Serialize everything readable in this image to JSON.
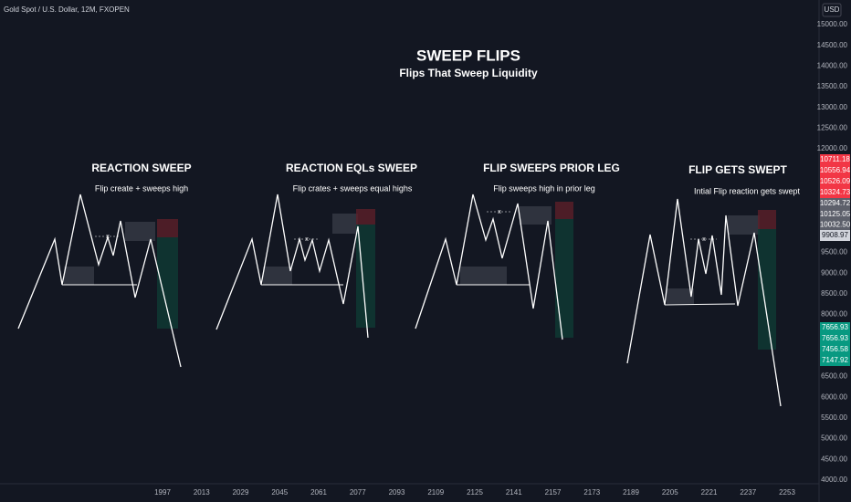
{
  "header": {
    "symbol": "Gold Spot / U.S. Dollar, 12M, FXOPEN",
    "currency": "USD"
  },
  "title": "SWEEP FLIPS",
  "subtitle": "Flips That Sweep Liquidity",
  "marker": "x",
  "panels": [
    {
      "title": "REACTION SWEEP",
      "subtitle": "Flip create + sweeps high"
    },
    {
      "title": "REACTION EQLs SWEEP",
      "subtitle": "Flip crates + sweeps equal highs"
    },
    {
      "title": "FLIP SWEEPS PRIOR LEG",
      "subtitle": "Flip sweeps high in prior leg"
    },
    {
      "title": "FLIP GETS SWEPT",
      "subtitle": "Intial Flip reaction gets swept"
    }
  ],
  "price_axis": {
    "ticks": [
      "15000.00",
      "14500.00",
      "14000.00",
      "13500.00",
      "13000.00",
      "12500.00",
      "12000.00",
      "9500.00",
      "9000.00",
      "8500.00",
      "8000.00",
      "6500.00",
      "6000.00",
      "5500.00",
      "5000.00",
      "4500.00",
      "4000.00"
    ],
    "red_labels": [
      "10711.18",
      "10556.94",
      "10526.09",
      "10324.73"
    ],
    "gray_labels": [
      "10294.72",
      "10125.05",
      "10032.50"
    ],
    "last_label": "9908.97",
    "green_labels": [
      "7656.93",
      "7656.93",
      "7456.58",
      "7147.92"
    ]
  },
  "time_axis": [
    "1997",
    "2013",
    "2029",
    "2045",
    "2061",
    "2077",
    "2093",
    "2109",
    "2125",
    "2141",
    "2157",
    "2173",
    "2189",
    "2205",
    "2221",
    "2237",
    "2253"
  ]
}
